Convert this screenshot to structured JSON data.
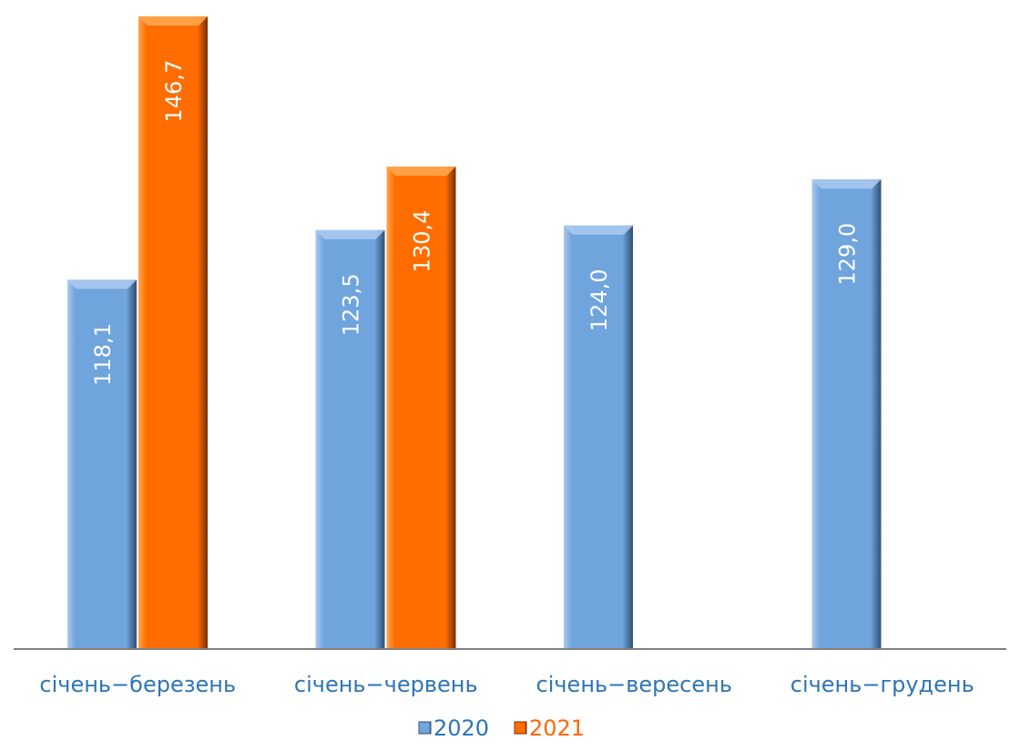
{
  "chart_data": {
    "type": "bar",
    "categories": [
      "січень−березень",
      "січень−червень",
      "січень−вересень",
      "січень−грудень"
    ],
    "series": [
      {
        "name": "2020",
        "values": [
          118.1,
          123.5,
          124.0,
          129.0
        ],
        "labels": [
          "118,1",
          "123,5",
          "124,0",
          "129,0"
        ],
        "color": "#6FA4DC",
        "dark": "#2F4F73",
        "light": "#A9C9EE",
        "text_color": "#2E75B6"
      },
      {
        "name": "2021",
        "values": [
          146.7,
          130.4,
          null,
          null
        ],
        "labels": [
          "146,7",
          "130,4",
          "",
          ""
        ],
        "color": "#FF6D00",
        "dark": "#7A2E00",
        "light": "#FFA54D",
        "text_color": "#FF6600"
      }
    ],
    "ylim": [
      78,
      147.5
    ],
    "grid": false,
    "legend": "bottom",
    "axis_color": "#7F7F7F",
    "category_label_color": "#2E75B6"
  }
}
